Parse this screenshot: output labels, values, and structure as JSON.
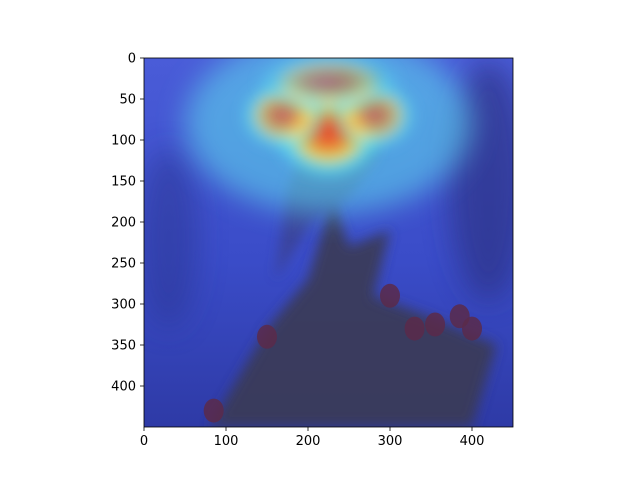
{
  "chart_data": {
    "type": "heatmap",
    "title": "",
    "xlabel": "",
    "ylabel": "",
    "xlim": [
      0,
      450
    ],
    "ylim": [
      450,
      0
    ],
    "x_ticks": [
      0,
      100,
      200,
      300,
      400
    ],
    "y_ticks": [
      0,
      50,
      100,
      150,
      200,
      250,
      300,
      350,
      400
    ],
    "grid": false,
    "colormap": "jet",
    "image_width": 450,
    "image_height": 450,
    "hotspots": [
      {
        "x": 225,
        "y": 90,
        "rx": 70,
        "ry": 60,
        "intensity": 1.0
      },
      {
        "x": 170,
        "y": 70,
        "rx": 55,
        "ry": 45,
        "intensity": 0.75
      },
      {
        "x": 280,
        "y": 70,
        "rx": 55,
        "ry": 45,
        "intensity": 0.7
      },
      {
        "x": 225,
        "y": 30,
        "rx": 90,
        "ry": 40,
        "intensity": 0.55
      }
    ]
  },
  "colors": {
    "background": "#ffffff",
    "axis": "#000000",
    "cold": "#3b4fd6",
    "cyan": "#5fe0f0",
    "yellow": "#f2e25a",
    "red": "#e8362a"
  }
}
